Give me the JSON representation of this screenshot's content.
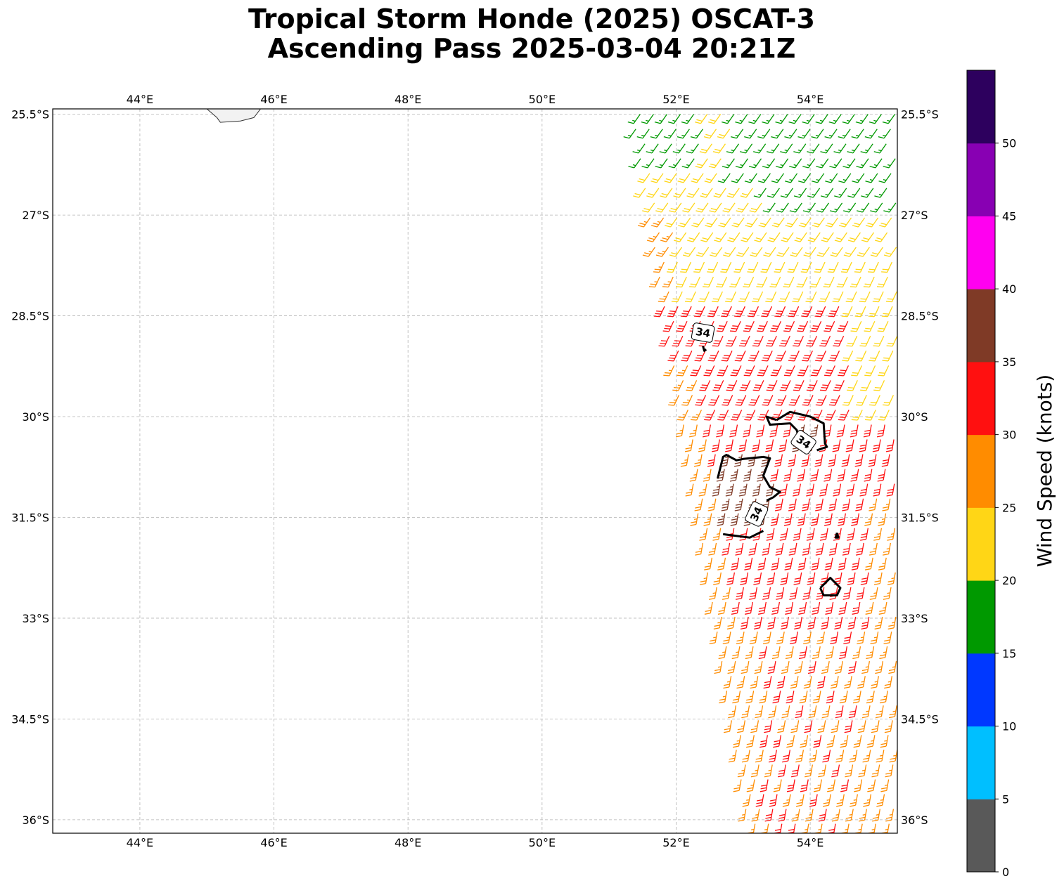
{
  "title": {
    "line1": "Tropical Storm Honde (2025) OSCAT-3",
    "line2": "Ascending Pass 2025-03-04 20:21Z"
  },
  "map": {
    "lon_range": [
      42.7,
      55.3
    ],
    "lat_range": [
      -36.2,
      -25.42
    ],
    "lon_ticks": [
      {
        "value": 44,
        "label": "44°E"
      },
      {
        "value": 46,
        "label": "46°E"
      },
      {
        "value": 48,
        "label": "48°E"
      },
      {
        "value": 50,
        "label": "50°E"
      },
      {
        "value": 52,
        "label": "52°E"
      },
      {
        "value": 54,
        "label": "54°E"
      }
    ],
    "lat_ticks": [
      {
        "value": -25.5,
        "label": "25.5°S"
      },
      {
        "value": -27,
        "label": "27°S"
      },
      {
        "value": -28.5,
        "label": "28.5°S"
      },
      {
        "value": -30,
        "label": "30°S"
      },
      {
        "value": -31.5,
        "label": "31.5°S"
      },
      {
        "value": -33,
        "label": "33°S"
      },
      {
        "value": -34.5,
        "label": "34.5°S"
      },
      {
        "value": -36,
        "label": "36°S"
      }
    ],
    "gridlines": true,
    "coastline_color": "#333333",
    "land_color": "#f2f2f2",
    "land_outline": [
      [
        45.0,
        -25.42
      ],
      [
        45.15,
        -25.55
      ],
      [
        45.2,
        -25.62
      ],
      [
        45.5,
        -25.6
      ],
      [
        45.7,
        -25.55
      ],
      [
        45.8,
        -25.42
      ]
    ],
    "contour_level_label": "34",
    "contour_color": "#000000",
    "contours": [
      [
        [
          52.4,
          -28.95
        ],
        [
          52.42,
          -29.02
        ],
        [
          52.45,
          -29.0
        ]
      ],
      [
        [
          53.5,
          -30.05
        ],
        [
          53.7,
          -29.93
        ],
        [
          54.0,
          -30.0
        ],
        [
          54.2,
          -30.1
        ],
        [
          54.22,
          -30.4
        ],
        [
          54.25,
          -30.45
        ],
        [
          54.1,
          -30.5
        ]
      ],
      [
        [
          53.5,
          -30.05
        ],
        [
          53.35,
          -30.0
        ],
        [
          53.4,
          -30.12
        ],
        [
          53.7,
          -30.1
        ],
        [
          53.8,
          -30.2
        ],
        [
          53.85,
          -30.4
        ]
      ],
      [
        [
          52.62,
          -30.92
        ],
        [
          52.7,
          -30.6
        ],
        [
          52.75,
          -30.57
        ],
        [
          52.9,
          -30.65
        ],
        [
          53.0,
          -30.63
        ],
        [
          53.3,
          -30.6
        ],
        [
          53.4,
          -30.62
        ],
        [
          53.3,
          -30.88
        ],
        [
          53.4,
          -31.05
        ],
        [
          53.55,
          -31.12
        ],
        [
          53.45,
          -31.2
        ],
        [
          53.35,
          -31.25
        ]
      ],
      [
        [
          53.3,
          -31.7
        ],
        [
          53.1,
          -31.8
        ],
        [
          52.7,
          -31.75
        ]
      ],
      [
        [
          54.4,
          -31.73
        ],
        [
          54.42,
          -31.8
        ],
        [
          54.38,
          -31.8
        ],
        [
          54.4,
          -31.73
        ]
      ],
      [
        [
          54.15,
          -32.55
        ],
        [
          54.3,
          -32.4
        ],
        [
          54.45,
          -32.55
        ],
        [
          54.4,
          -32.66
        ],
        [
          54.2,
          -32.66
        ],
        [
          54.15,
          -32.55
        ]
      ]
    ],
    "contour_labels": [
      {
        "lon": 52.4,
        "lat": -28.75,
        "text": "34"
      },
      {
        "lon": 53.9,
        "lat": -30.38,
        "text": "34"
      },
      {
        "lon": 53.2,
        "lat": -31.45,
        "text": "34"
      }
    ]
  },
  "chart_data": {
    "type": "wind_barb_map",
    "units": "knots",
    "variable": "Wind Speed",
    "swath": {
      "lon_west_edge_top": 51.45,
      "lon_west_edge_bottom": 53.2,
      "lat_top": -25.42,
      "lat_bottom": -36.2
    },
    "speed_regions": [
      {
        "speed": 17,
        "area": "north-east of swath, 25.5°S–27°S"
      },
      {
        "speed": 23,
        "area": "27°S–28.5°S and eastern edge 28.5°S–30°S"
      },
      {
        "speed": 32,
        "area": "central swath 28.5°S–33°S"
      },
      {
        "speed": 36,
        "area": "pockets near 30.5°S–31.5°S, 52.6°E–53.5°E"
      },
      {
        "speed": 27,
        "area": "southern swath 33°S–36°S"
      }
    ]
  },
  "colorbar": {
    "label": "Wind Speed (knots)",
    "bins": [
      {
        "from": 0,
        "to": 5,
        "color": "#595959"
      },
      {
        "from": 5,
        "to": 10,
        "color": "#00bfff"
      },
      {
        "from": 10,
        "to": 15,
        "color": "#0038ff"
      },
      {
        "from": 15,
        "to": 20,
        "color": "#009900"
      },
      {
        "from": 20,
        "to": 25,
        "color": "#ffd616"
      },
      {
        "from": 25,
        "to": 30,
        "color": "#ff8c00"
      },
      {
        "from": 30,
        "to": 35,
        "color": "#ff1010"
      },
      {
        "from": 35,
        "to": 40,
        "color": "#7f3a26"
      },
      {
        "from": 40,
        "to": 45,
        "color": "#ff00f0"
      },
      {
        "from": 45,
        "to": 50,
        "color": "#8800b3"
      },
      {
        "from": 50,
        "to": 55,
        "color": "#2d005e"
      }
    ],
    "tick_labels": [
      "0",
      "5",
      "10",
      "15",
      "20",
      "25",
      "30",
      "35",
      "40",
      "45",
      "50"
    ]
  }
}
